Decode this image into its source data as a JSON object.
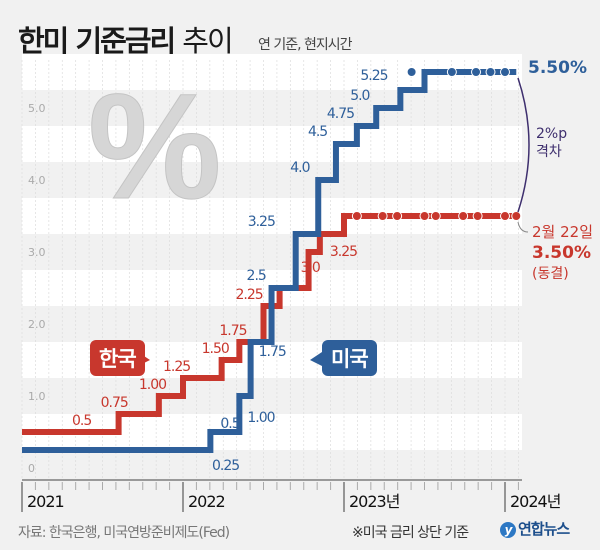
{
  "title_bold": "한미 기준금리",
  "title_light": "추이",
  "subtitle": "연 기준, 현지시간",
  "source": "자료: 한국은행, 미국연방준비제도(Fed)",
  "note": "※미국 금리 상단 기준",
  "logo": "연합뉴스",
  "colors": {
    "korea": "#c8372d",
    "us": "#2e5f9a",
    "gap": "#3e2f6e"
  },
  "chart_data": {
    "type": "line",
    "step": true,
    "ylim": [
      0,
      5.5
    ],
    "yticks": [
      "0",
      "1.0",
      "2.0",
      "3.0",
      "4.0",
      "5.0"
    ],
    "ytick_values": [
      0,
      1,
      2,
      3,
      4,
      5
    ],
    "xticks": [
      "2021",
      "2022",
      "2023년",
      "2024년"
    ],
    "xtick_values": [
      2021,
      2022,
      2023,
      2024
    ],
    "grid": true,
    "series": [
      {
        "name": "한국",
        "color": "#c8372d",
        "steps": [
          [
            2021.0,
            0.5
          ],
          [
            2021.6,
            0.75
          ],
          [
            2021.85,
            1.0
          ],
          [
            2022.0,
            1.25
          ],
          [
            2022.24,
            1.5
          ],
          [
            2022.35,
            1.75
          ],
          [
            2022.5,
            2.25
          ],
          [
            2022.6,
            2.5
          ],
          [
            2022.78,
            3.0
          ],
          [
            2022.85,
            3.25
          ],
          [
            2023.0,
            3.5
          ]
        ],
        "end": 2024.07,
        "labels": [
          "0.5",
          "0.75",
          "1.00",
          "1.25",
          "1.50",
          "1.75",
          "2.25",
          "",
          "3.0",
          "3.25",
          ""
        ],
        "hold_points": [
          2023.08,
          2023.24,
          2023.33,
          2023.5,
          2023.57,
          2023.74,
          2023.83,
          2024.0,
          2024.07
        ]
      },
      {
        "name": "미국",
        "color": "#2e5f9a",
        "steps": [
          [
            2021.0,
            0.25
          ],
          [
            2022.17,
            0.5
          ],
          [
            2022.35,
            1.0
          ],
          [
            2022.42,
            1.75
          ],
          [
            2022.55,
            2.5
          ],
          [
            2022.7,
            3.25
          ],
          [
            2022.84,
            4.0
          ],
          [
            2022.95,
            4.5
          ],
          [
            2023.08,
            4.75
          ],
          [
            2023.2,
            5.0
          ],
          [
            2023.35,
            5.25
          ],
          [
            2023.5,
            5.5
          ]
        ],
        "end": 2024.07,
        "labels": [
          "0.25",
          "0.5",
          "1.00",
          "1.75",
          "2.5",
          "3.25",
          "4.0",
          "4.5",
          "4.75",
          "5.0",
          "5.25",
          ""
        ],
        "hold_points": [
          2023.42,
          2023.67,
          2023.82,
          2023.91,
          2024.0
        ]
      }
    ],
    "annotations": {
      "us_final": "5.50%",
      "gap": [
        "2%p",
        "격차"
      ],
      "korea_date": "2월 22일",
      "korea_final": "3.50%",
      "korea_status": "(동결)"
    }
  }
}
